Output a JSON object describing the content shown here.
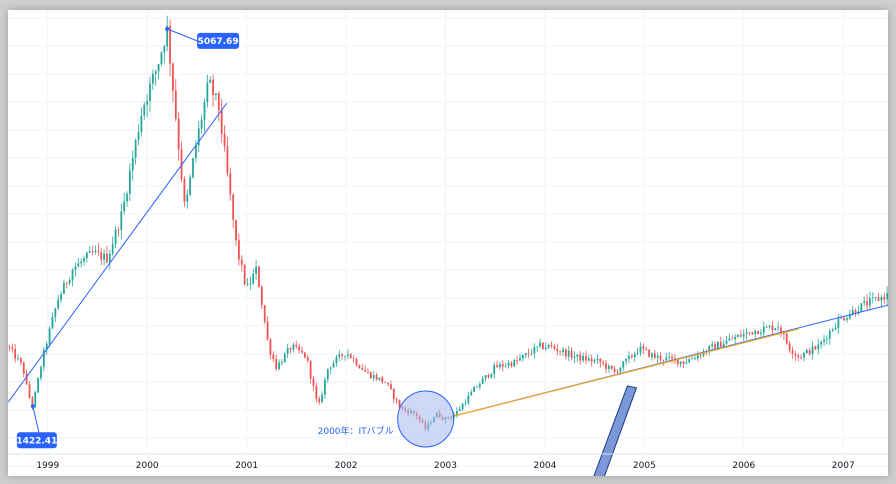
{
  "chart_data": {
    "type": "candlestick",
    "x_axis": {
      "tick_labels": [
        "1999",
        "2000",
        "2001",
        "2002",
        "2003",
        "2004",
        "2005",
        "2006",
        "2007"
      ],
      "range": [
        1998.6,
        2007.45
      ]
    },
    "y_axis": {
      "range": [
        1000,
        5250
      ],
      "tick_labels_visible": false
    },
    "grid": true,
    "colors": {
      "up": "#26a69a",
      "down": "#ef5350",
      "trendline": "#2962ff",
      "channel": "#f5a623",
      "badge": "#2962ff",
      "circle_fill": "#a7b9f0",
      "arrow_fill": "#7b98d9",
      "arrow_stroke": "#1f3a80"
    },
    "price_path": [
      [
        1998.6,
        2000
      ],
      [
        1998.75,
        1800
      ],
      [
        1998.8,
        1550
      ],
      [
        1998.85,
        1422.41
      ],
      [
        1998.95,
        1900
      ],
      [
        1999.1,
        2450
      ],
      [
        1999.25,
        2750
      ],
      [
        1999.45,
        2900
      ],
      [
        1999.6,
        2850
      ],
      [
        1999.75,
        3300
      ],
      [
        1999.95,
        4300
      ],
      [
        2000.1,
        4700
      ],
      [
        2000.2,
        5067.69
      ],
      [
        2000.3,
        4100
      ],
      [
        2000.38,
        3300
      ],
      [
        2000.48,
        3900
      ],
      [
        2000.62,
        4550
      ],
      [
        2000.72,
        4300
      ],
      [
        2000.8,
        3700
      ],
      [
        2000.9,
        2950
      ],
      [
        2001.0,
        2550
      ],
      [
        2001.1,
        2750
      ],
      [
        2001.22,
        2000
      ],
      [
        2001.3,
        1800
      ],
      [
        2001.45,
        2000
      ],
      [
        2001.6,
        1900
      ],
      [
        2001.72,
        1400
      ],
      [
        2001.82,
        1800
      ],
      [
        2002.0,
        1950
      ],
      [
        2002.2,
        1750
      ],
      [
        2002.4,
        1650
      ],
      [
        2002.55,
        1400
      ],
      [
        2002.7,
        1350
      ],
      [
        2002.8,
        1200
      ],
      [
        2002.9,
        1350
      ],
      [
        2003.0,
        1300
      ],
      [
        2003.1,
        1350
      ],
      [
        2003.3,
        1600
      ],
      [
        2003.5,
        1800
      ],
      [
        2003.7,
        1850
      ],
      [
        2003.95,
        2000
      ],
      [
        2004.05,
        2000
      ],
      [
        2004.3,
        1900
      ],
      [
        2004.55,
        1850
      ],
      [
        2004.7,
        1750
      ],
      [
        2004.95,
        1980
      ],
      [
        2005.1,
        1900
      ],
      [
        2005.4,
        1850
      ],
      [
        2005.7,
        2000
      ],
      [
        2005.95,
        2100
      ],
      [
        2006.1,
        2150
      ],
      [
        2006.35,
        2200
      ],
      [
        2006.45,
        2000
      ],
      [
        2006.55,
        1900
      ],
      [
        2006.75,
        2000
      ],
      [
        2006.95,
        2250
      ],
      [
        2007.2,
        2400
      ],
      [
        2007.45,
        2500
      ]
    ],
    "trendlines": [
      {
        "from": [
          1998.6,
          1460
        ],
        "to": [
          2000.8,
          4350
        ]
      },
      {
        "from": [
          2003.05,
          1320
        ],
        "to": [
          2007.45,
          2400
        ]
      }
    ],
    "channel_line": {
      "from": [
        2003.05,
        1320
      ],
      "to": [
        2006.55,
        2170
      ]
    },
    "annotations": {
      "high": {
        "label": "5067.69",
        "point": [
          2000.2,
          5067.69
        ]
      },
      "low": {
        "label": "1422.41",
        "point": [
          1998.85,
          1422.41
        ]
      },
      "circle": {
        "center": [
          2002.8,
          1300
        ],
        "text": "2000年：ITバブル"
      }
    }
  }
}
